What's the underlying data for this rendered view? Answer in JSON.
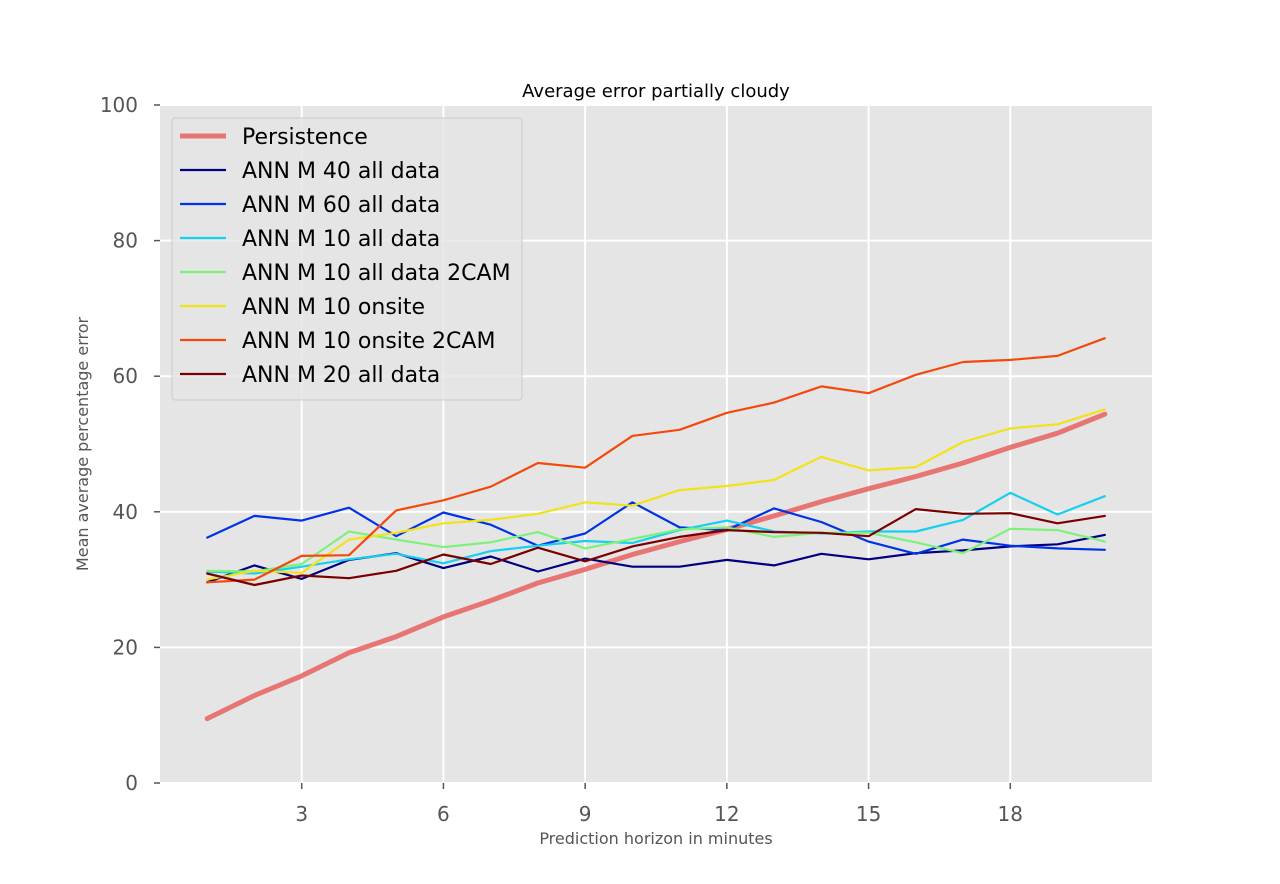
{
  "chart_data": {
    "type": "line",
    "title": "Average error partially cloudy",
    "xlabel": "Prediction horizon in minutes",
    "ylabel": "Mean average percentage error",
    "xlim": [
      0,
      21
    ],
    "ylim": [
      0,
      100
    ],
    "xticks": [
      3,
      6,
      9,
      12,
      15,
      18
    ],
    "yticks": [
      0,
      20,
      40,
      60,
      80,
      100
    ],
    "grid": true,
    "legend_position": "top-left",
    "x": [
      1,
      2,
      3,
      4,
      5,
      6,
      7,
      8,
      9,
      10,
      11,
      12,
      13,
      14,
      15,
      16,
      17,
      18,
      19,
      20
    ],
    "series": [
      {
        "name": "Persistence",
        "color": "#e8625f",
        "width": 5,
        "alpha": 0.85,
        "values": [
          9.5,
          12.9,
          15.8,
          19.2,
          21.6,
          24.5,
          26.9,
          29.5,
          31.5,
          33.7,
          35.6,
          37.4,
          39.4,
          41.5,
          43.4,
          45.2,
          47.2,
          49.5,
          51.6,
          54.4
        ]
      },
      {
        "name": "ANN M 40 all data",
        "color": "#000080",
        "width": 2.2,
        "alpha": 1,
        "values": [
          29.6,
          32.1,
          30.1,
          32.9,
          33.9,
          31.7,
          33.4,
          31.2,
          33.1,
          31.9,
          31.9,
          32.9,
          32.1,
          33.8,
          33.0,
          33.9,
          34.3,
          34.9,
          35.2,
          36.6
        ]
      },
      {
        "name": "ANN M 60 all data",
        "color": "#0033e6",
        "width": 2.2,
        "alpha": 1,
        "values": [
          36.2,
          39.4,
          38.7,
          40.6,
          36.4,
          39.9,
          38.1,
          35.0,
          36.8,
          41.4,
          37.7,
          37.3,
          40.5,
          38.5,
          35.6,
          33.8,
          35.9,
          35.0,
          34.6,
          34.4
        ]
      },
      {
        "name": "ANN M 10 all data",
        "color": "#15d0f0",
        "width": 2.2,
        "alpha": 1,
        "values": [
          31.2,
          30.9,
          31.9,
          33.0,
          33.8,
          32.4,
          34.2,
          35.0,
          35.7,
          35.4,
          37.3,
          38.7,
          37.1,
          36.8,
          37.1,
          37.1,
          38.8,
          42.8,
          39.6,
          42.3
        ]
      },
      {
        "name": "ANN M 10 all data 2CAM",
        "color": "#7cf27a",
        "width": 2.2,
        "alpha": 1,
        "values": [
          31.3,
          31.2,
          32.3,
          37.1,
          35.9,
          34.8,
          35.5,
          37.0,
          34.6,
          36.0,
          37.4,
          37.7,
          36.3,
          36.9,
          36.9,
          35.5,
          33.9,
          37.5,
          37.3,
          35.6
        ]
      },
      {
        "name": "ANN M 10 onsite",
        "color": "#f2e21a",
        "width": 2.2,
        "alpha": 1,
        "values": [
          30.0,
          31.3,
          31.0,
          35.9,
          36.9,
          38.3,
          38.8,
          39.7,
          41.4,
          40.9,
          43.2,
          43.8,
          44.7,
          48.1,
          46.1,
          46.6,
          50.3,
          52.3,
          52.9,
          55.1
        ]
      },
      {
        "name": "ANN M 10 onsite 2CAM",
        "color": "#f24a0d",
        "width": 2.2,
        "alpha": 1,
        "values": [
          29.6,
          30.0,
          33.5,
          33.6,
          40.2,
          41.7,
          43.7,
          47.2,
          46.5,
          51.2,
          52.1,
          54.6,
          56.1,
          58.5,
          57.5,
          60.2,
          62.1,
          62.4,
          63.0,
          65.6
        ]
      },
      {
        "name": "ANN M 20 all data",
        "color": "#7a0000",
        "width": 2.2,
        "alpha": 1,
        "values": [
          30.9,
          29.2,
          30.6,
          30.2,
          31.3,
          33.7,
          32.3,
          34.7,
          32.7,
          34.9,
          36.3,
          37.3,
          37.0,
          36.9,
          36.4,
          40.4,
          39.7,
          39.8,
          38.3,
          39.4
        ]
      }
    ]
  }
}
